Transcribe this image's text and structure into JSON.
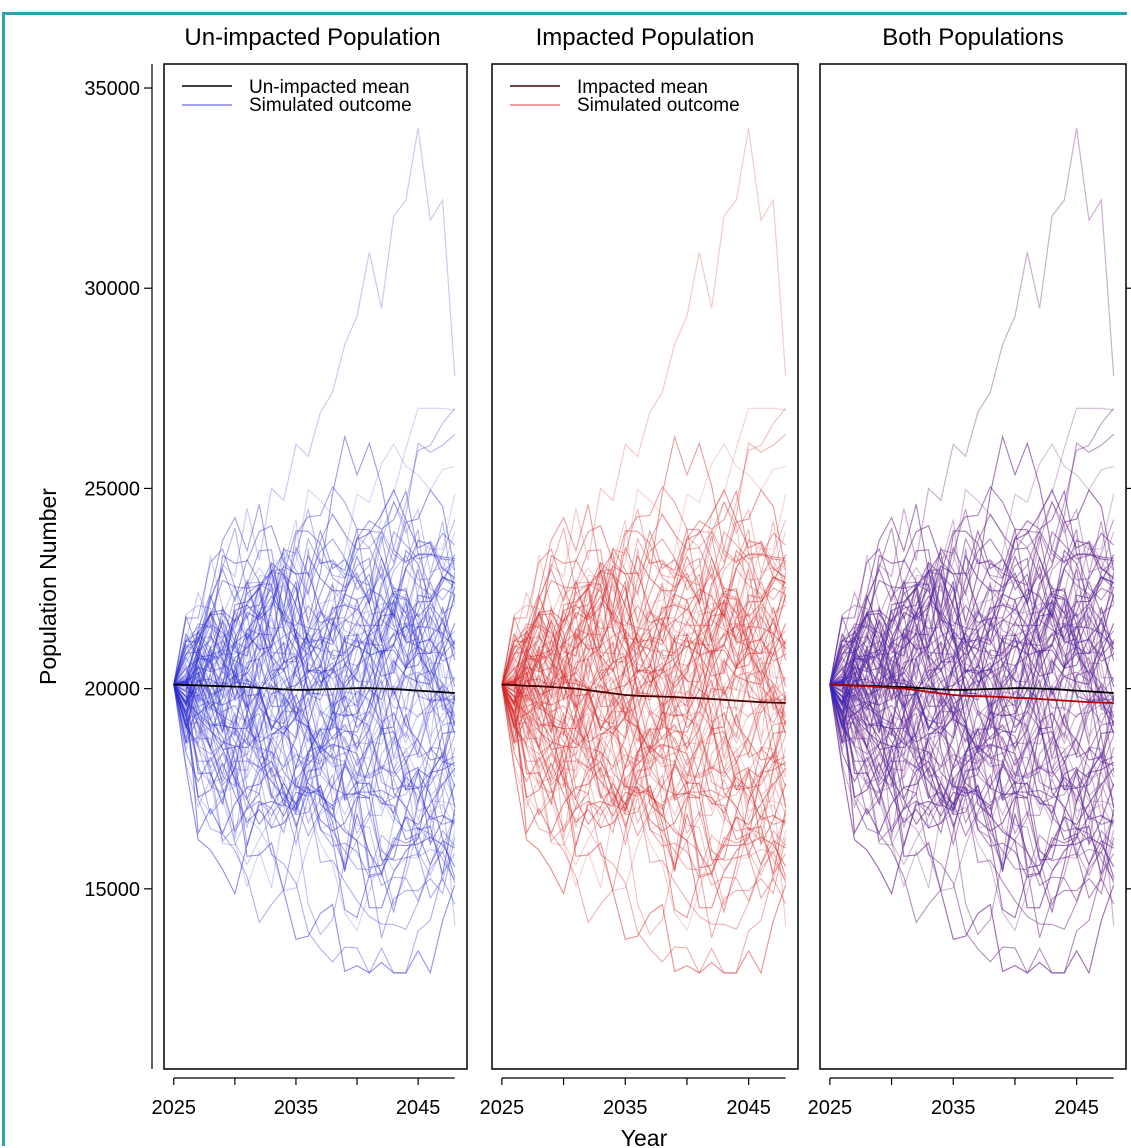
{
  "colors": {
    "frame": "#2aa3b3",
    "unimpacted_sim": "#2c2ccf",
    "impacted_sim": "#d42a2a",
    "unimpacted_mean": "#000000",
    "impacted_mean": "#4a0000",
    "impacted_mean_overlay": "#b00000"
  },
  "chart_data": {
    "type": "line",
    "ylabel": "Population Number",
    "xlabel": "Year",
    "ylim": [
      10500,
      35600
    ],
    "xlim": [
      2024.2,
      2049
    ],
    "x_ticks": [
      2025,
      2035,
      2045
    ],
    "y_ticks": [
      15000,
      20000,
      25000,
      30000,
      35000
    ],
    "grid": false,
    "years": [
      2025,
      2026,
      2027,
      2028,
      2029,
      2030,
      2031,
      2032,
      2033,
      2034,
      2035,
      2036,
      2037,
      2038,
      2039,
      2040,
      2041,
      2042,
      2043,
      2044,
      2045,
      2046,
      2047,
      2048
    ],
    "panels": [
      {
        "title": "Un-impacted Population",
        "legend": {
          "position": "top",
          "mean_label": "Un-impacted mean",
          "sim_label": "Simulated outcome"
        },
        "series": [
          {
            "kind": "mean",
            "values": [
              20100,
              20090,
              20080,
              20070,
              20060,
              20050,
              20040,
              20020,
              20000,
              19980,
              19970,
              19970,
              19980,
              19990,
              20000,
              20010,
              20010,
              20000,
              19990,
              19970,
              19950,
              19930,
              19910,
              19890
            ]
          }
        ]
      },
      {
        "title": "Impacted Population",
        "legend": {
          "position": "top",
          "mean_label": "Impacted mean",
          "sim_label": "Simulated outcome"
        },
        "series": [
          {
            "kind": "mean",
            "values": [
              20100,
              20090,
              20070,
              20060,
              20040,
              20020,
              20000,
              19960,
              19920,
              19880,
              19840,
              19820,
              19810,
              19800,
              19790,
              19770,
              19760,
              19740,
              19720,
              19700,
              19680,
              19660,
              19650,
              19640
            ]
          }
        ]
      },
      {
        "title": "Both Populations",
        "series": [
          {
            "kind": "mean",
            "values": [
              20100,
              20090,
              20080,
              20070,
              20060,
              20050,
              20040,
              20020,
              20000,
              19980,
              19970,
              19970,
              19980,
              19990,
              20000,
              20010,
              20010,
              20000,
              19990,
              19970,
              19950,
              19930,
              19910,
              19890
            ]
          },
          {
            "kind": "mean",
            "values": [
              20100,
              20090,
              20070,
              20060,
              20040,
              20020,
              20000,
              19960,
              19920,
              19880,
              19840,
              19820,
              19810,
              19800,
              19790,
              19770,
              19760,
              19740,
              19720,
              19700,
              19680,
              19660,
              19650,
              19640
            ]
          }
        ]
      }
    ],
    "simulated": {
      "count": 100,
      "start": 20100,
      "outlier_values": [
        20100,
        21200,
        22400,
        21600,
        23100,
        22800,
        24500,
        23200,
        25000,
        24700,
        26100,
        25800,
        26900,
        27400,
        28600,
        29300,
        30900,
        29500,
        31800,
        32200,
        34000,
        31700,
        32200,
        27800
      ]
    }
  }
}
